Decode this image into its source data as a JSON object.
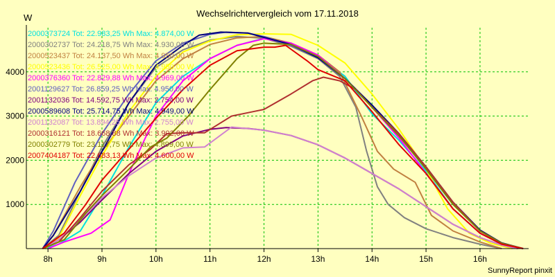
{
  "chart_data": {
    "type": "line",
    "title": "Wechselrichtervergleich vom 17.11.2018",
    "ylabel": "W",
    "credit": "SunnyReport pinxit",
    "xlim": [
      7.6,
      16.9
    ],
    "ylim": [
      0,
      5000
    ],
    "x_ticks": [
      {
        "value": 8,
        "label": "8h"
      },
      {
        "value": 9,
        "label": "9h"
      },
      {
        "value": 10,
        "label": "10h"
      },
      {
        "value": 11,
        "label": "11h"
      },
      {
        "value": 12,
        "label": "12h"
      },
      {
        "value": 13,
        "label": "13h"
      },
      {
        "value": 14,
        "label": "14h"
      },
      {
        "value": 15,
        "label": "15h"
      },
      {
        "value": 16,
        "label": "16h"
      }
    ],
    "y_ticks": [
      {
        "value": 1000,
        "label": "1000"
      },
      {
        "value": 2000,
        "label": "2000"
      },
      {
        "value": 3000,
        "label": "3000"
      },
      {
        "value": 4000,
        "label": "4000"
      }
    ],
    "grid": true,
    "legend_position": "top-left",
    "series": [
      {
        "name": "2000373724 Tot: 22.983,25 Wh Max: 4.874,00 W",
        "color": "#00e0e0",
        "points": [
          [
            7.95,
            0
          ],
          [
            8.2,
            100
          ],
          [
            8.6,
            400
          ],
          [
            9.0,
            1200
          ],
          [
            9.5,
            2300
          ],
          [
            10.0,
            3300
          ],
          [
            10.5,
            3900
          ],
          [
            11.0,
            4300
          ],
          [
            11.5,
            4600
          ],
          [
            12.0,
            4760
          ],
          [
            12.5,
            4650
          ],
          [
            13.0,
            4350
          ],
          [
            13.5,
            3900
          ],
          [
            14.0,
            3050
          ],
          [
            14.5,
            2450
          ],
          [
            15.0,
            1750
          ],
          [
            15.5,
            900
          ],
          [
            16.0,
            350
          ],
          [
            16.4,
            100
          ],
          [
            16.8,
            0
          ]
        ]
      },
      {
        "name": "2000302737 Tot: 24.218,75 Wh Max: 4.930,00 W",
        "color": "#808080",
        "points": [
          [
            7.9,
            0
          ],
          [
            8.2,
            300
          ],
          [
            8.6,
            1300
          ],
          [
            9.0,
            2300
          ],
          [
            9.5,
            3300
          ],
          [
            10.0,
            4100
          ],
          [
            10.5,
            4500
          ],
          [
            11.0,
            4720
          ],
          [
            11.5,
            4800
          ],
          [
            12.0,
            4760
          ],
          [
            12.5,
            4580
          ],
          [
            13.0,
            4300
          ],
          [
            13.4,
            3900
          ],
          [
            13.7,
            3200
          ],
          [
            13.9,
            2200
          ],
          [
            14.1,
            1400
          ],
          [
            14.3,
            1000
          ],
          [
            14.6,
            700
          ],
          [
            15.0,
            450
          ],
          [
            15.5,
            250
          ],
          [
            16.0,
            100
          ],
          [
            16.4,
            0
          ]
        ]
      },
      {
        "name": "2000523437 Tot: 24.137,50 Wh Max: 4.950,00 W",
        "color": "#c08040",
        "points": [
          [
            7.9,
            0
          ],
          [
            8.1,
            300
          ],
          [
            8.6,
            1400
          ],
          [
            9.0,
            2200
          ],
          [
            9.5,
            3000
          ],
          [
            10.0,
            3800
          ],
          [
            10.5,
            4300
          ],
          [
            11.0,
            4620
          ],
          [
            11.5,
            4770
          ],
          [
            12.0,
            4800
          ],
          [
            12.5,
            4650
          ],
          [
            13.0,
            4380
          ],
          [
            13.4,
            4000
          ],
          [
            13.8,
            3000
          ],
          [
            14.1,
            2200
          ],
          [
            14.4,
            1800
          ],
          [
            14.8,
            1500
          ],
          [
            15.1,
            750
          ],
          [
            15.5,
            400
          ],
          [
            16.0,
            150
          ],
          [
            16.4,
            0
          ]
        ]
      },
      {
        "name": "2000523436 Tot: 26.525,00 Wh Max: 4.950,00 W",
        "color": "#ffff00",
        "points": [
          [
            7.95,
            0
          ],
          [
            8.2,
            250
          ],
          [
            8.6,
            1200
          ],
          [
            9.0,
            2100
          ],
          [
            9.5,
            3100
          ],
          [
            10.0,
            3900
          ],
          [
            10.5,
            4450
          ],
          [
            11.0,
            4700
          ],
          [
            11.5,
            4840
          ],
          [
            12.0,
            4860
          ],
          [
            12.5,
            4850
          ],
          [
            13.0,
            4600
          ],
          [
            13.5,
            4200
          ],
          [
            14.0,
            3500
          ],
          [
            14.5,
            2700
          ],
          [
            15.0,
            1800
          ],
          [
            15.4,
            900
          ],
          [
            15.8,
            350
          ],
          [
            16.2,
            120
          ],
          [
            16.6,
            0
          ]
        ]
      },
      {
        "name": "2000376360 Tot: 22.829,88 Wh Max: 4.969,00 W",
        "color": "#ff00ff",
        "points": [
          [
            8.0,
            0
          ],
          [
            8.3,
            150
          ],
          [
            8.8,
            350
          ],
          [
            9.15,
            650
          ],
          [
            9.5,
            1700
          ],
          [
            9.8,
            2500
          ],
          [
            10.0,
            3000
          ],
          [
            10.5,
            3800
          ],
          [
            11.0,
            4300
          ],
          [
            11.5,
            4600
          ],
          [
            12.0,
            4750
          ],
          [
            12.5,
            4650
          ],
          [
            13.0,
            4380
          ],
          [
            13.5,
            3850
          ],
          [
            14.0,
            3200
          ],
          [
            14.5,
            2500
          ],
          [
            15.0,
            1700
          ],
          [
            15.5,
            900
          ],
          [
            16.0,
            350
          ],
          [
            16.4,
            100
          ],
          [
            16.8,
            0
          ]
        ]
      },
      {
        "name": "2001129627 Tot: 26.859,25 Wh Max: 4.950,00 W",
        "color": "#6060c0",
        "points": [
          [
            7.9,
            0
          ],
          [
            8.1,
            400
          ],
          [
            8.5,
            1500
          ],
          [
            9.0,
            2600
          ],
          [
            9.5,
            3500
          ],
          [
            10.0,
            4250
          ],
          [
            10.5,
            4650
          ],
          [
            11.0,
            4850
          ],
          [
            11.3,
            4900
          ],
          [
            11.7,
            4880
          ],
          [
            12.0,
            4800
          ],
          [
            12.5,
            4600
          ],
          [
            13.0,
            4320
          ],
          [
            13.5,
            3850
          ],
          [
            14.0,
            3200
          ],
          [
            14.5,
            2550
          ],
          [
            15.0,
            1800
          ],
          [
            15.5,
            1000
          ],
          [
            16.0,
            400
          ],
          [
            16.4,
            120
          ],
          [
            16.8,
            0
          ]
        ]
      },
      {
        "name": "2001132036 Tot: 14.592,75 Wh Max: 2.754,00 W",
        "color": "#800080",
        "points": [
          [
            7.9,
            0
          ],
          [
            8.2,
            200
          ],
          [
            8.6,
            600
          ],
          [
            9.0,
            1100
          ],
          [
            9.5,
            1700
          ],
          [
            10.0,
            2200
          ],
          [
            10.5,
            2550
          ],
          [
            11.0,
            2700
          ],
          [
            11.3,
            2740
          ],
          [
            11.7,
            2720
          ],
          [
            12.0,
            2680
          ],
          [
            12.5,
            2560
          ],
          [
            13.0,
            2350
          ],
          [
            13.5,
            2050
          ],
          [
            14.0,
            1700
          ],
          [
            14.5,
            1350
          ],
          [
            15.0,
            950
          ],
          [
            15.5,
            550
          ],
          [
            16.0,
            250
          ],
          [
            16.4,
            80
          ],
          [
            16.7,
            0
          ]
        ]
      },
      {
        "name": "2000589608 Tot: 25.714,75 Wh Max: 4.949,00 W",
        "color": "#000080",
        "points": [
          [
            7.9,
            0
          ],
          [
            8.1,
            300
          ],
          [
            8.6,
            1300
          ],
          [
            9.0,
            2200
          ],
          [
            9.5,
            3300
          ],
          [
            10.0,
            4150
          ],
          [
            10.5,
            4600
          ],
          [
            10.8,
            4830
          ],
          [
            11.2,
            4900
          ],
          [
            11.7,
            4880
          ],
          [
            12.0,
            4780
          ],
          [
            12.5,
            4620
          ],
          [
            13.0,
            4320
          ],
          [
            13.5,
            3850
          ],
          [
            14.0,
            3250
          ],
          [
            14.5,
            2600
          ],
          [
            15.0,
            1850
          ],
          [
            15.5,
            1050
          ],
          [
            16.0,
            420
          ],
          [
            16.4,
            130
          ],
          [
            16.8,
            0
          ]
        ]
      },
      {
        "name": "2001132087 Tot: 13.894,25 Wh Max: 2.755,00 W",
        "color": "#d080d0",
        "points": [
          [
            7.9,
            0
          ],
          [
            8.2,
            200
          ],
          [
            8.6,
            650
          ],
          [
            9.0,
            1150
          ],
          [
            9.5,
            1650
          ],
          [
            10.0,
            2050
          ],
          [
            10.5,
            2280
          ],
          [
            10.9,
            2300
          ],
          [
            11.4,
            2750
          ],
          [
            12.0,
            2680
          ],
          [
            12.5,
            2560
          ],
          [
            13.0,
            2350
          ],
          [
            13.5,
            2050
          ],
          [
            14.0,
            1700
          ],
          [
            14.5,
            1350
          ],
          [
            15.0,
            950
          ],
          [
            15.5,
            550
          ],
          [
            16.0,
            250
          ],
          [
            16.4,
            80
          ],
          [
            16.7,
            0
          ]
        ]
      },
      {
        "name": "2000316121 Tot: 18.668,88 Wh Max: 3.902,00 W",
        "color": "#b03030",
        "points": [
          [
            7.9,
            0
          ],
          [
            8.2,
            150
          ],
          [
            8.6,
            700
          ],
          [
            9.0,
            1300
          ],
          [
            9.5,
            1900
          ],
          [
            9.9,
            2250
          ],
          [
            10.2,
            2600
          ],
          [
            10.5,
            2620
          ],
          [
            10.9,
            2620
          ],
          [
            11.4,
            3000
          ],
          [
            11.8,
            3100
          ],
          [
            12.0,
            3150
          ],
          [
            12.5,
            3500
          ],
          [
            12.9,
            3800
          ],
          [
            13.1,
            3880
          ],
          [
            13.4,
            3800
          ],
          [
            13.7,
            3600
          ],
          [
            14.0,
            3200
          ],
          [
            14.5,
            2600
          ],
          [
            15.0,
            1850
          ],
          [
            15.5,
            1050
          ],
          [
            16.0,
            400
          ],
          [
            16.4,
            120
          ],
          [
            16.8,
            0
          ]
        ]
      },
      {
        "name": "2000302779 Tot: 23.117,75 Wh Max: 4.899,00 W",
        "color": "#808000",
        "points": [
          [
            7.9,
            0
          ],
          [
            8.3,
            200
          ],
          [
            8.7,
            800
          ],
          [
            9.0,
            1200
          ],
          [
            9.5,
            1800
          ],
          [
            9.9,
            2300
          ],
          [
            10.2,
            2500
          ],
          [
            10.6,
            3000
          ],
          [
            11.0,
            3600
          ],
          [
            11.5,
            4300
          ],
          [
            11.8,
            4600
          ],
          [
            12.0,
            4650
          ],
          [
            12.5,
            4620
          ],
          [
            13.0,
            4350
          ],
          [
            13.5,
            3850
          ],
          [
            14.0,
            3200
          ],
          [
            14.5,
            2550
          ],
          [
            15.0,
            1800
          ],
          [
            15.5,
            1000
          ],
          [
            16.0,
            400
          ],
          [
            16.4,
            120
          ],
          [
            16.8,
            0
          ]
        ]
      },
      {
        "name": "2007404187 Tot: 22.683,13 Wh Max: 4.600,00 W",
        "color": "#e00000",
        "points": [
          [
            7.9,
            0
          ],
          [
            8.3,
            350
          ],
          [
            8.7,
            1000
          ],
          [
            9.0,
            1550
          ],
          [
            9.5,
            2250
          ],
          [
            10.0,
            2950
          ],
          [
            10.5,
            3600
          ],
          [
            11.0,
            4150
          ],
          [
            11.5,
            4480
          ],
          [
            12.0,
            4560
          ],
          [
            12.2,
            4560
          ],
          [
            12.4,
            4600
          ],
          [
            12.8,
            4250
          ],
          [
            13.0,
            4050
          ],
          [
            13.5,
            3800
          ],
          [
            14.0,
            3100
          ],
          [
            14.5,
            2350
          ],
          [
            15.0,
            1700
          ],
          [
            15.5,
            900
          ],
          [
            16.0,
            350
          ],
          [
            16.4,
            100
          ],
          [
            16.8,
            0
          ]
        ]
      }
    ]
  }
}
